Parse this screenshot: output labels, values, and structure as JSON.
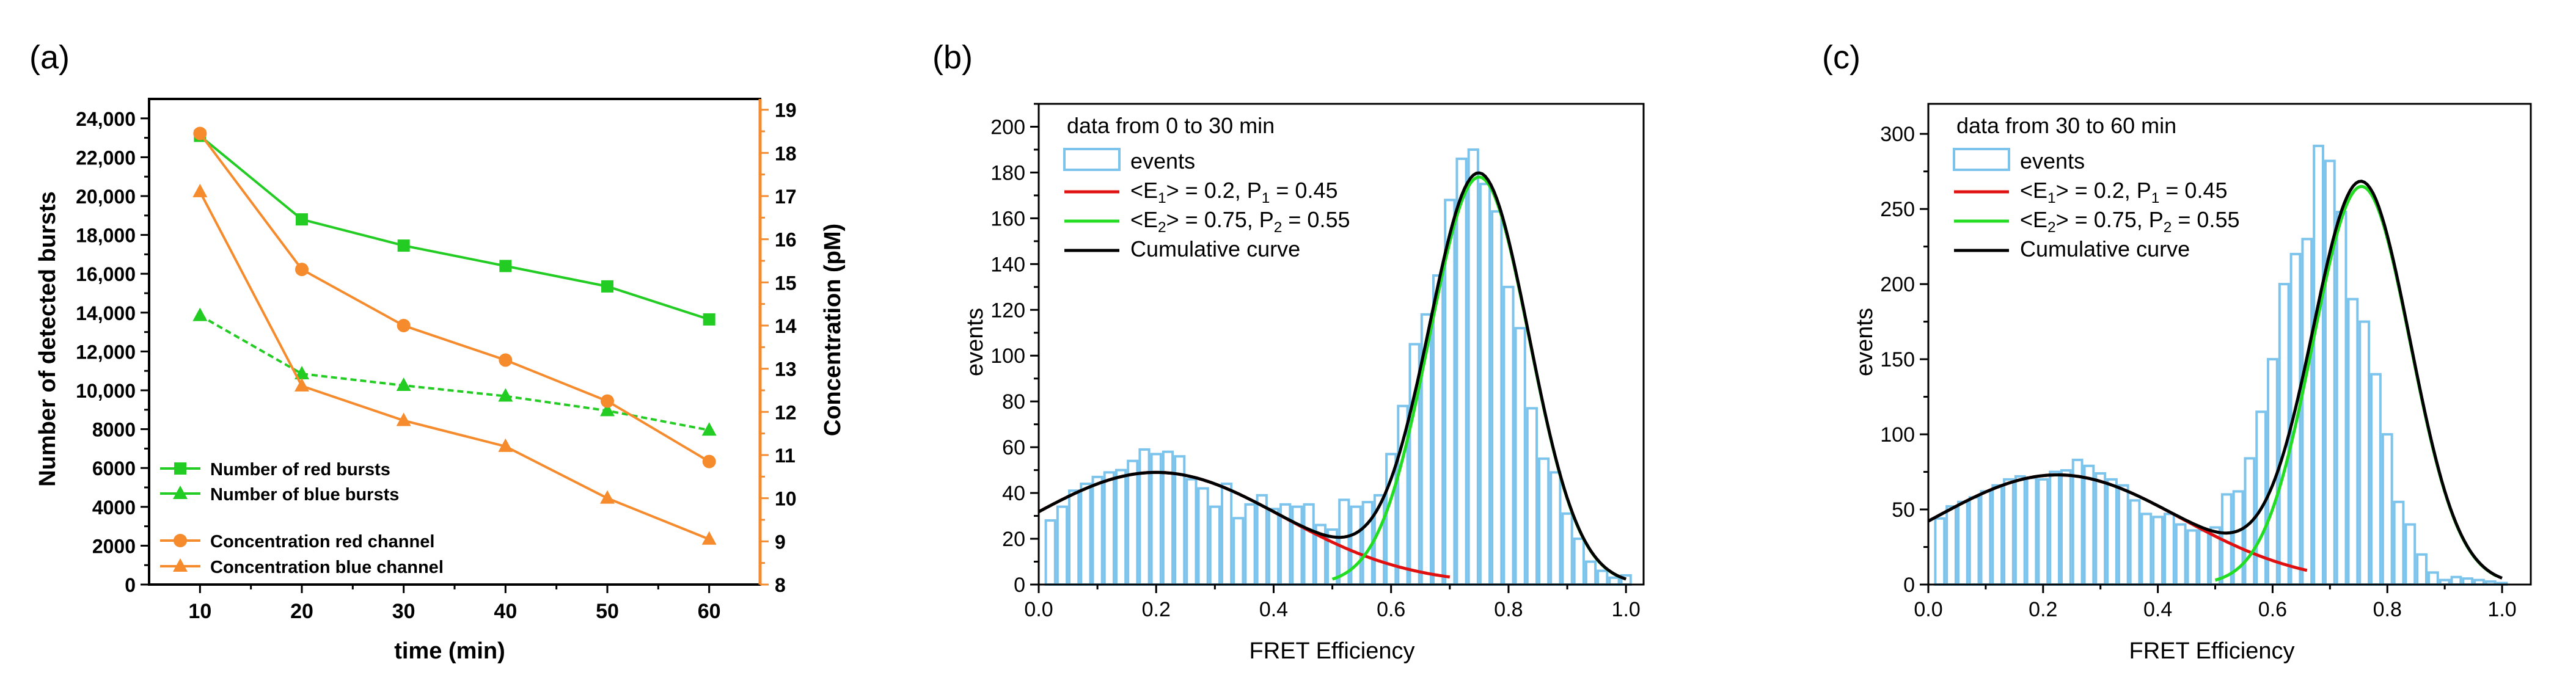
{
  "colors": {
    "green": "#22cc22",
    "orange": "#f58b2c",
    "blue_bar": "#7cc4ec",
    "red_fit": "#e01010",
    "green_fit": "#22dd22",
    "black": "#000000",
    "right_axis": "#f58b2c"
  },
  "chart_data": [
    {
      "panel_label": "(a)",
      "type": "line",
      "xlabel": "time (min)",
      "ylabel": "Number of detected bursts",
      "y2label": "Concentration (pM)",
      "xlim": [
        5,
        65
      ],
      "x_ticks": [
        10,
        20,
        30,
        40,
        50,
        60
      ],
      "ylim": [
        0,
        25000
      ],
      "y_ticks": [
        0,
        2000,
        4000,
        6000,
        8000,
        10000,
        12000,
        14000,
        16000,
        18000,
        20000,
        22000,
        24000
      ],
      "y_tick_labels": [
        "0",
        "2000",
        "4000",
        "6000",
        "8000",
        "10,000",
        "12,000",
        "14,000",
        "16,000",
        "18,000",
        "20,000",
        "22,000",
        "24,000"
      ],
      "y2lim": [
        8,
        19.25
      ],
      "y2_ticks": [
        8,
        9,
        10,
        11,
        12,
        13,
        14,
        15,
        16,
        17,
        18,
        19
      ],
      "legend": [
        "Number of red bursts",
        "Number of blue bursts",
        "Concentration red channel",
        "Concentration blue channel"
      ],
      "legend_position": "bottom-left",
      "series": [
        {
          "name": "Number of red bursts",
          "axis": "left",
          "marker": "square",
          "color": "#22cc22",
          "dashed": false,
          "x": [
            10,
            20,
            30,
            40,
            50,
            60
          ],
          "values": [
            23100,
            18800,
            17450,
            16400,
            15350,
            13650
          ]
        },
        {
          "name": "Number of blue bursts",
          "axis": "left",
          "marker": "triangle",
          "color": "#22cc22",
          "dashed": true,
          "x": [
            10,
            20,
            30,
            40,
            50,
            60
          ],
          "values": [
            13850,
            10850,
            10250,
            9700,
            8950,
            7950
          ]
        },
        {
          "name": "Concentration red channel",
          "axis": "right",
          "marker": "circle",
          "color": "#f58b2c",
          "dashed": false,
          "x": [
            10,
            20,
            30,
            40,
            50,
            60
          ],
          "values": [
            18.45,
            15.3,
            14.0,
            13.2,
            12.25,
            10.85
          ]
        },
        {
          "name": "Concentration blue channel",
          "axis": "right",
          "marker": "triangle",
          "color": "#f58b2c",
          "dashed": false,
          "x": [
            10,
            20,
            30,
            40,
            50,
            60
          ],
          "values": [
            17.1,
            12.6,
            11.8,
            11.2,
            10.0,
            9.05
          ]
        }
      ]
    },
    {
      "panel_label": "(b)",
      "type": "bar",
      "title": "data from 0 to 30 min",
      "xlabel": "FRET Efficiency",
      "ylabel": "events",
      "xlim": [
        0,
        1.03
      ],
      "x_ticks": [
        0.0,
        0.2,
        0.4,
        0.6,
        0.8,
        1.0
      ],
      "x_tick_labels": [
        "0.0",
        "0.2",
        "0.4",
        "0.6",
        "0.8",
        "1.0"
      ],
      "ylim": [
        0,
        210
      ],
      "y_ticks": [
        0,
        20,
        40,
        60,
        80,
        100,
        120,
        140,
        160,
        180,
        200
      ],
      "bin_width": 0.02,
      "bin_starts": [
        0.01,
        0.03,
        0.05,
        0.07,
        0.09,
        0.11,
        0.13,
        0.15,
        0.17,
        0.19,
        0.21,
        0.23,
        0.25,
        0.27,
        0.29,
        0.31,
        0.33,
        0.35,
        0.37,
        0.39,
        0.41,
        0.43,
        0.45,
        0.47,
        0.49,
        0.51,
        0.53,
        0.55,
        0.57,
        0.59,
        0.61,
        0.63,
        0.65,
        0.67,
        0.69,
        0.71,
        0.73,
        0.75,
        0.77,
        0.79,
        0.81,
        0.83,
        0.85,
        0.87,
        0.89,
        0.91,
        0.93,
        0.95,
        0.97,
        0.99
      ],
      "values": [
        28,
        34,
        41,
        44,
        47,
        49,
        50,
        54,
        59,
        57,
        58,
        56,
        46,
        42,
        34,
        44,
        29,
        35,
        39,
        33,
        35,
        34,
        35,
        26,
        24,
        37,
        34,
        36,
        39,
        57,
        78,
        105,
        118,
        135,
        168,
        186,
        190,
        175,
        163,
        130,
        112,
        77,
        55,
        49,
        31,
        20,
        10,
        6,
        3,
        4
      ],
      "fits": [
        {
          "name": "<E1> = 0.2, P1 = 0.45",
          "color": "#e01010",
          "mean": 0.2,
          "amp": 49,
          "sigma": 0.215,
          "range": [
            0.0,
            0.7
          ]
        },
        {
          "name": "<E2> = 0.75, P2 = 0.55",
          "color": "#22dd22",
          "mean": 0.75,
          "amp": 178,
          "sigma": 0.085,
          "range": [
            0.5,
            0.99
          ]
        },
        {
          "name": "Cumulative curve",
          "color": "#000000",
          "cumulative": true,
          "range": [
            0.0,
            1.0
          ]
        }
      ],
      "legend": [
        "events",
        "<E1> = 0.2, P1 = 0.45",
        "<E2> = 0.75, P2 = 0.55",
        "Cumulative curve"
      ],
      "legend_position": "top-left"
    },
    {
      "panel_label": "(c)",
      "type": "bar",
      "title": "data from 30 to 60 min",
      "xlabel": "FRET Efficiency",
      "ylabel": "events",
      "xlim": [
        0,
        1.05
      ],
      "x_ticks": [
        0.0,
        0.2,
        0.4,
        0.6,
        0.8,
        1.0
      ],
      "x_tick_labels": [
        "0.0",
        "0.2",
        "0.4",
        "0.6",
        "0.8",
        "1.0"
      ],
      "ylim": [
        0,
        320
      ],
      "y_ticks": [
        0,
        50,
        100,
        150,
        200,
        250,
        300
      ],
      "bin_width": 0.02,
      "bin_starts": [
        0.01,
        0.03,
        0.05,
        0.07,
        0.09,
        0.11,
        0.13,
        0.15,
        0.17,
        0.19,
        0.21,
        0.23,
        0.25,
        0.27,
        0.29,
        0.31,
        0.33,
        0.35,
        0.37,
        0.39,
        0.41,
        0.43,
        0.45,
        0.47,
        0.49,
        0.51,
        0.53,
        0.55,
        0.57,
        0.59,
        0.61,
        0.63,
        0.65,
        0.67,
        0.69,
        0.71,
        0.73,
        0.75,
        0.77,
        0.79,
        0.81,
        0.83,
        0.85,
        0.87,
        0.89,
        0.91,
        0.93,
        0.95,
        0.97,
        0.99
      ],
      "values": [
        44,
        52,
        55,
        58,
        62,
        66,
        70,
        72,
        71,
        70,
        75,
        76,
        83,
        79,
        74,
        70,
        66,
        56,
        47,
        45,
        47,
        40,
        36,
        36,
        38,
        60,
        62,
        84,
        115,
        150,
        200,
        220,
        230,
        292,
        282,
        248,
        190,
        175,
        140,
        100,
        55,
        40,
        20,
        8,
        3,
        5,
        4,
        3,
        2,
        1
      ],
      "fits": [
        {
          "name": "<E1> = 0.2, P1 = 0.45",
          "color": "#e01010",
          "mean": 0.225,
          "amp": 73,
          "sigma": 0.215,
          "range": [
            0.0,
            0.66
          ]
        },
        {
          "name": "<E2> = 0.75, P2 = 0.55",
          "color": "#22dd22",
          "mean": 0.755,
          "amp": 265,
          "sigma": 0.085,
          "range": [
            0.5,
            0.99
          ]
        },
        {
          "name": "Cumulative curve",
          "color": "#000000",
          "cumulative": true,
          "range": [
            0.0,
            1.0
          ]
        }
      ],
      "legend": [
        "events",
        "<E1> = 0.2, P1 = 0.45",
        "<E2> = 0.75, P2 = 0.55",
        "Cumulative curve"
      ],
      "legend_position": "top-left"
    }
  ]
}
